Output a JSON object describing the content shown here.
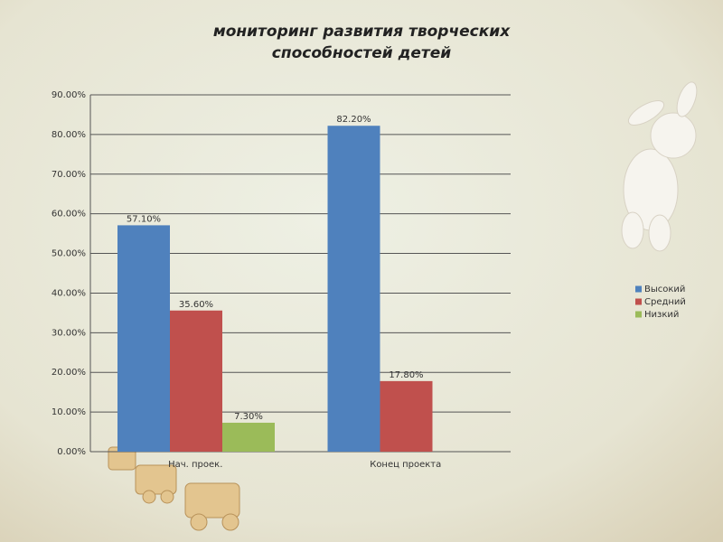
{
  "chart_data": {
    "type": "bar",
    "title": [
      "мониторинг развития творческих",
      "способностей детей"
    ],
    "categories": [
      "Нач. проек.",
      "Конец проекта"
    ],
    "series": [
      {
        "name": "Высокий",
        "color": "#4f81bd",
        "values": [
          57.1,
          82.2
        ],
        "value_labels": [
          "57.10%",
          "82.20%"
        ]
      },
      {
        "name": "Средний",
        "color": "#c0504d",
        "values": [
          35.6,
          17.8
        ],
        "value_labels": [
          "35.60%",
          "17.80%"
        ]
      },
      {
        "name": "Низкий",
        "color": "#9bbb59",
        "values": [
          7.3,
          null
        ],
        "value_labels": [
          "7.30%",
          null
        ]
      }
    ],
    "ylim": [
      0,
      90
    ],
    "yticks": [
      {
        "value": 0,
        "label": "0.00%"
      },
      {
        "value": 10,
        "label": "10.00%"
      },
      {
        "value": 20,
        "label": "20.00%"
      },
      {
        "value": 30,
        "label": "30.00%"
      },
      {
        "value": 40,
        "label": "40.00%"
      },
      {
        "value": 50,
        "label": "50.00%"
      },
      {
        "value": 60,
        "label": "60.00%"
      },
      {
        "value": 70,
        "label": "70.00%"
      },
      {
        "value": 80,
        "label": "80.00%"
      },
      {
        "value": 90,
        "label": "90.00%"
      }
    ],
    "grid": true,
    "legend": "right"
  }
}
